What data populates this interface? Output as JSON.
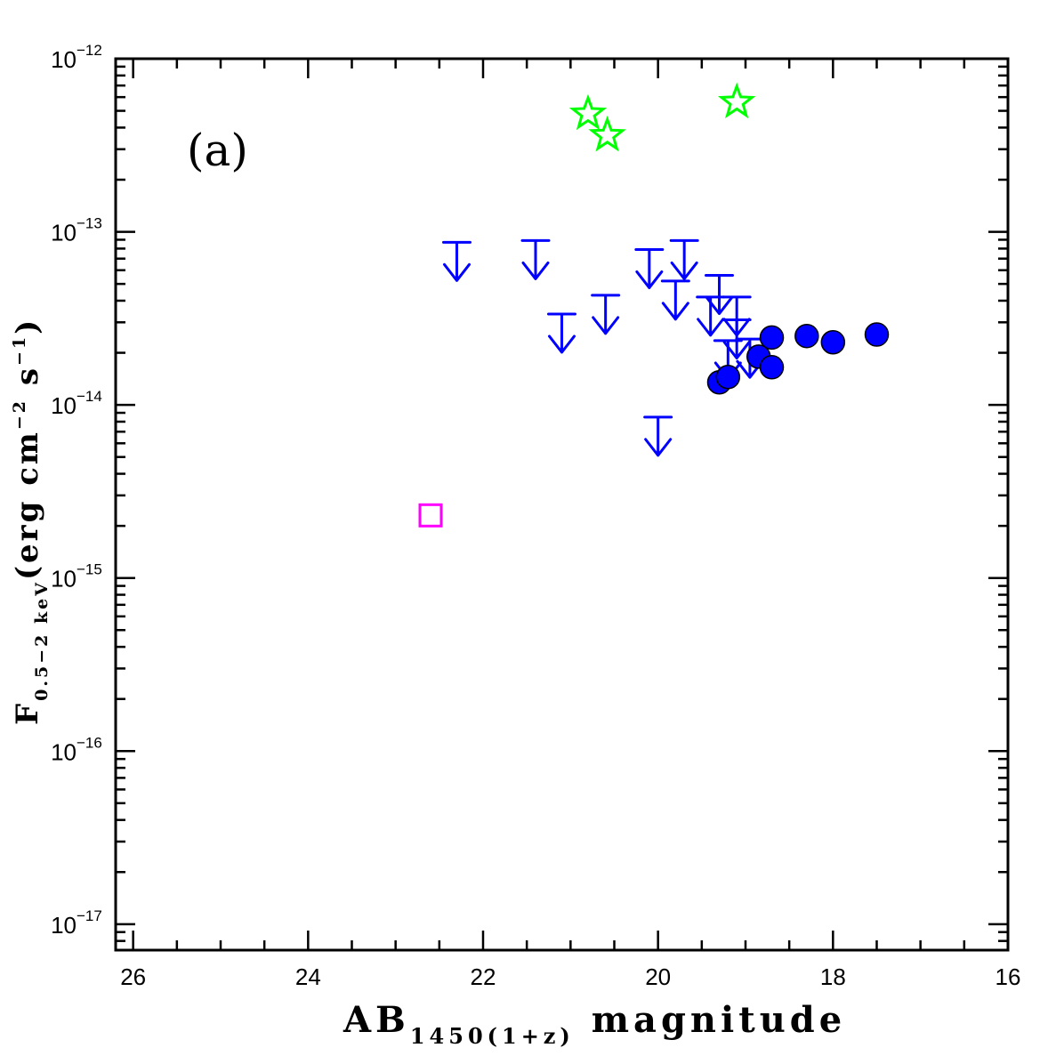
{
  "chart_data": {
    "type": "scatter",
    "panel_label": "(a)",
    "xlabel": {
      "main": "AB",
      "sub": "1450(1+z)",
      "rest": " magnitude"
    },
    "ylabel": {
      "main": "F",
      "sub": "0.5−2 keV",
      "rest": "(erg cm",
      "sup1": "−2",
      "mid": " s",
      "sup2": "−1",
      "end": ")"
    },
    "xlim": [
      26.2,
      16
    ],
    "x_reversed": true,
    "ylim_log10": [
      -17.15,
      -12
    ],
    "y_scale": "log",
    "x_ticks": [
      "26",
      "24",
      "22",
      "20",
      "18",
      "16"
    ],
    "x_tick_values": [
      26,
      24,
      22,
      20,
      18,
      16
    ],
    "y_ticks": [
      {
        "base": "10",
        "exp": "−12",
        "log": -12
      },
      {
        "base": "10",
        "exp": "−13",
        "log": -13
      },
      {
        "base": "10",
        "exp": "−14",
        "log": -14
      },
      {
        "base": "10",
        "exp": "−15",
        "log": -15
      },
      {
        "base": "10",
        "exp": "−16",
        "log": -16
      },
      {
        "base": "10",
        "exp": "−17",
        "log": -17
      }
    ],
    "series": [
      {
        "marker": "star",
        "color": "#00ff00",
        "points": [
          {
            "x": 20.8,
            "y": 4.8e-13
          },
          {
            "x": 20.58,
            "y": 3.6e-13
          },
          {
            "x": 19.1,
            "y": 5.6e-13
          }
        ]
      },
      {
        "marker": "upper-limit-arrow",
        "color": "#0000ff",
        "points": [
          {
            "x": 22.3,
            "y": 8.7e-14
          },
          {
            "x": 21.4,
            "y": 8.9e-14
          },
          {
            "x": 21.1,
            "y": 3.35e-14
          },
          {
            "x": 20.6,
            "y": 4.3e-14
          },
          {
            "x": 20.1,
            "y": 7.9e-14
          },
          {
            "x": 19.8,
            "y": 5.2e-14
          },
          {
            "x": 19.7,
            "y": 8.9e-14
          },
          {
            "x": 19.4,
            "y": 4.2e-14
          },
          {
            "x": 19.3,
            "y": 5.6e-14
          },
          {
            "x": 19.2,
            "y": 2.35e-14
          },
          {
            "x": 19.1,
            "y": 4.2e-14
          },
          {
            "x": 19.1,
            "y": 3.1e-14
          },
          {
            "x": 18.95,
            "y": 2.4e-14
          },
          {
            "x": 20.0,
            "y": 8.5e-15
          }
        ]
      },
      {
        "marker": "filled-circle",
        "color": "#0000ff",
        "points": [
          {
            "x": 19.3,
            "y": 1.35e-14
          },
          {
            "x": 19.2,
            "y": 1.45e-14
          },
          {
            "x": 18.85,
            "y": 1.9e-14
          },
          {
            "x": 18.7,
            "y": 1.65e-14
          },
          {
            "x": 18.7,
            "y": 2.45e-14
          },
          {
            "x": 18.3,
            "y": 2.5e-14
          },
          {
            "x": 18.0,
            "y": 2.3e-14
          },
          {
            "x": 17.5,
            "y": 2.55e-14
          }
        ]
      },
      {
        "marker": "open-square",
        "color": "#ff00ff",
        "points": [
          {
            "x": 22.6,
            "y": 2.3e-15
          }
        ]
      }
    ]
  }
}
